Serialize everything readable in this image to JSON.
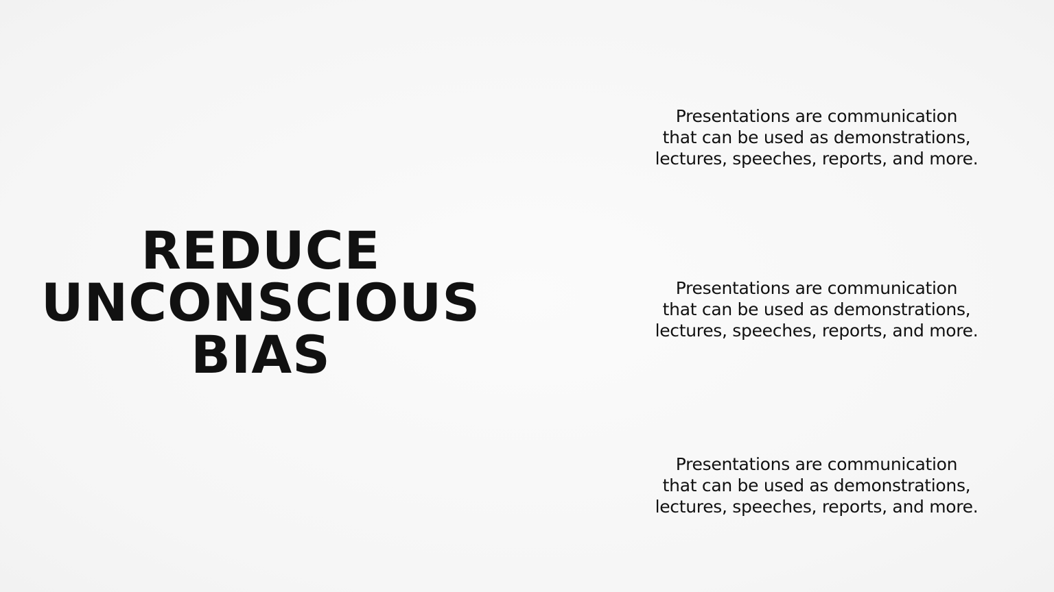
{
  "title": {
    "line1": "REDUCE",
    "line2": "UNCONSCIOUS",
    "line3": "BIAS"
  },
  "blurbs": [
    {
      "line1": "Presentations are communication",
      "line2": "that can be used as demonstrations,",
      "line3": "lectures, speeches, reports, and more."
    },
    {
      "line1": "Presentations are communication",
      "line2": "that can be used as demonstrations,",
      "line3": "lectures, speeches, reports, and more."
    },
    {
      "line1": "Presentations are communication",
      "line2": "that can be used as demonstrations,",
      "line3": "lectures, speeches, reports, and more."
    }
  ]
}
